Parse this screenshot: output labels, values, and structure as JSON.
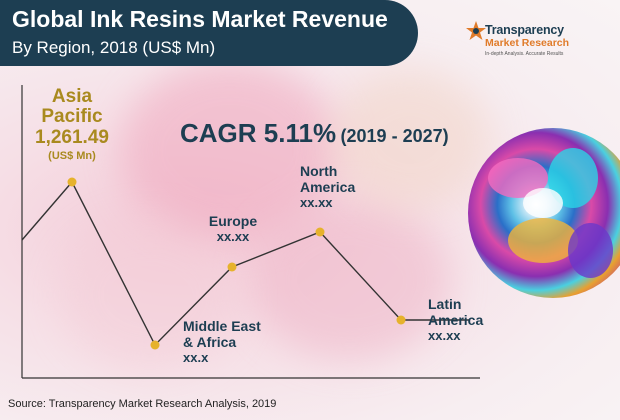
{
  "header": {
    "title": "Global Ink Resins Market Revenue",
    "subtitle": "By Region, 2018 (US$ Mn)"
  },
  "logo": {
    "line1": "Transparency",
    "line2": "Market Research",
    "tagline": "In-depth Analysis. Accurate Results"
  },
  "cagr": {
    "label": "CAGR 5.11%",
    "period": "(2019 - 2027)"
  },
  "source": "Source: Transparency Market Research Analysis, 2019",
  "colors": {
    "banner": "#1d3e52",
    "marker": "#e6b22c",
    "line": "#333333",
    "highlight_label": "#a98a1f"
  },
  "chart_data": {
    "type": "line",
    "categories": [
      "Asia Pacific",
      "Middle East & Africa",
      "Europe",
      "North America",
      "Latin America"
    ],
    "values": [
      1261.49,
      null,
      null,
      null,
      null
    ],
    "value_labels": [
      "1,261.49",
      "xx.x",
      "xx.xx",
      "xx.xx",
      "xx.xx"
    ],
    "highlight_unit": "(US$ Mn)",
    "title": "Global Ink Resins Market Revenue",
    "subtitle": "By Region, 2018 (US$ Mn)"
  }
}
